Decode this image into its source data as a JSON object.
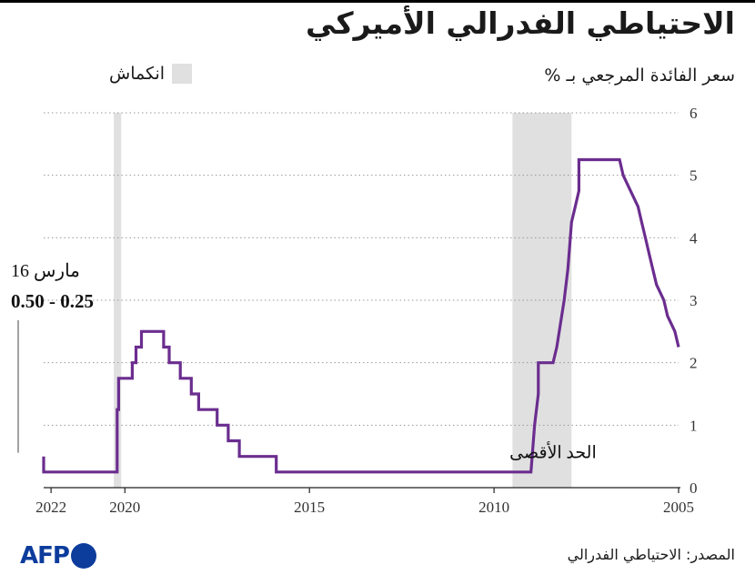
{
  "header": {
    "title": "الاحتياطي الفدرالي الأميركي",
    "subtitle": "سعر الفائدة المرجعي بـ %"
  },
  "legend": {
    "label": "انكماش",
    "color": "#e0e0e0"
  },
  "footer": {
    "source": "المصدر: الاحتياطي الفدرالي",
    "logo_text": "AFP",
    "logo_color": "#0c3c9c"
  },
  "colors": {
    "line": "#6b2d8f",
    "recession": "#e0e0e0",
    "grid": "#999999"
  },
  "chart_data": {
    "type": "line",
    "x_direction": "right-to-left",
    "xlim": [
      2005,
      2022.2
    ],
    "ylim": [
      0,
      6
    ],
    "grid": true,
    "x_ticks": [
      2005,
      2010,
      2015,
      2020,
      2022
    ],
    "y_ticks": [
      0,
      1,
      2,
      3,
      4,
      5,
      6
    ],
    "recessions": [
      [
        2007.9,
        2009.5
      ],
      [
        2020.1,
        2020.3
      ]
    ],
    "series": [
      {
        "points": [
          [
            2005.0,
            2.25
          ],
          [
            2005.1,
            2.5
          ],
          [
            2005.3,
            2.75
          ],
          [
            2005.4,
            3.0
          ],
          [
            2005.6,
            3.25
          ],
          [
            2005.7,
            3.5
          ],
          [
            2005.8,
            3.75
          ],
          [
            2005.9,
            4.0
          ],
          [
            2006.0,
            4.25
          ],
          [
            2006.1,
            4.5
          ],
          [
            2006.3,
            4.75
          ],
          [
            2006.5,
            5.0
          ],
          [
            2006.6,
            5.25
          ],
          [
            2007.7,
            5.25
          ],
          [
            2007.7,
            4.75
          ],
          [
            2007.8,
            4.5
          ],
          [
            2007.9,
            4.25
          ],
          [
            2008.0,
            3.5
          ],
          [
            2008.1,
            3.0
          ],
          [
            2008.3,
            2.25
          ],
          [
            2008.4,
            2.0
          ],
          [
            2008.8,
            2.0
          ],
          [
            2008.8,
            1.5
          ],
          [
            2008.9,
            1.0
          ],
          [
            2009.0,
            0.25
          ],
          [
            2015.9,
            0.25
          ],
          [
            2015.9,
            0.5
          ],
          [
            2016.9,
            0.5
          ],
          [
            2016.9,
            0.75
          ],
          [
            2017.2,
            0.75
          ],
          [
            2017.2,
            1.0
          ],
          [
            2017.5,
            1.0
          ],
          [
            2017.5,
            1.25
          ],
          [
            2018.0,
            1.25
          ],
          [
            2018.0,
            1.5
          ],
          [
            2018.2,
            1.5
          ],
          [
            2018.2,
            1.75
          ],
          [
            2018.5,
            1.75
          ],
          [
            2018.5,
            2.0
          ],
          [
            2018.8,
            2.0
          ],
          [
            2018.8,
            2.25
          ],
          [
            2018.95,
            2.25
          ],
          [
            2018.95,
            2.5
          ],
          [
            2019.55,
            2.5
          ],
          [
            2019.55,
            2.25
          ],
          [
            2019.7,
            2.25
          ],
          [
            2019.7,
            2.0
          ],
          [
            2019.8,
            2.0
          ],
          [
            2019.8,
            1.75
          ],
          [
            2020.17,
            1.75
          ],
          [
            2020.17,
            1.25
          ],
          [
            2020.21,
            1.25
          ],
          [
            2020.21,
            0.25
          ],
          [
            2022.2,
            0.25
          ],
          [
            2022.2,
            0.5
          ]
        ]
      }
    ],
    "annotations": [
      {
        "text": "الحد الأقصى",
        "x": 2008.5,
        "y": 0.3
      },
      {
        "text": "16 مارس",
        "x": 2022.2,
        "y": 3.5
      },
      {
        "text": "0.50 - 0.25",
        "x": 2022.2,
        "y": 3.0
      }
    ]
  }
}
